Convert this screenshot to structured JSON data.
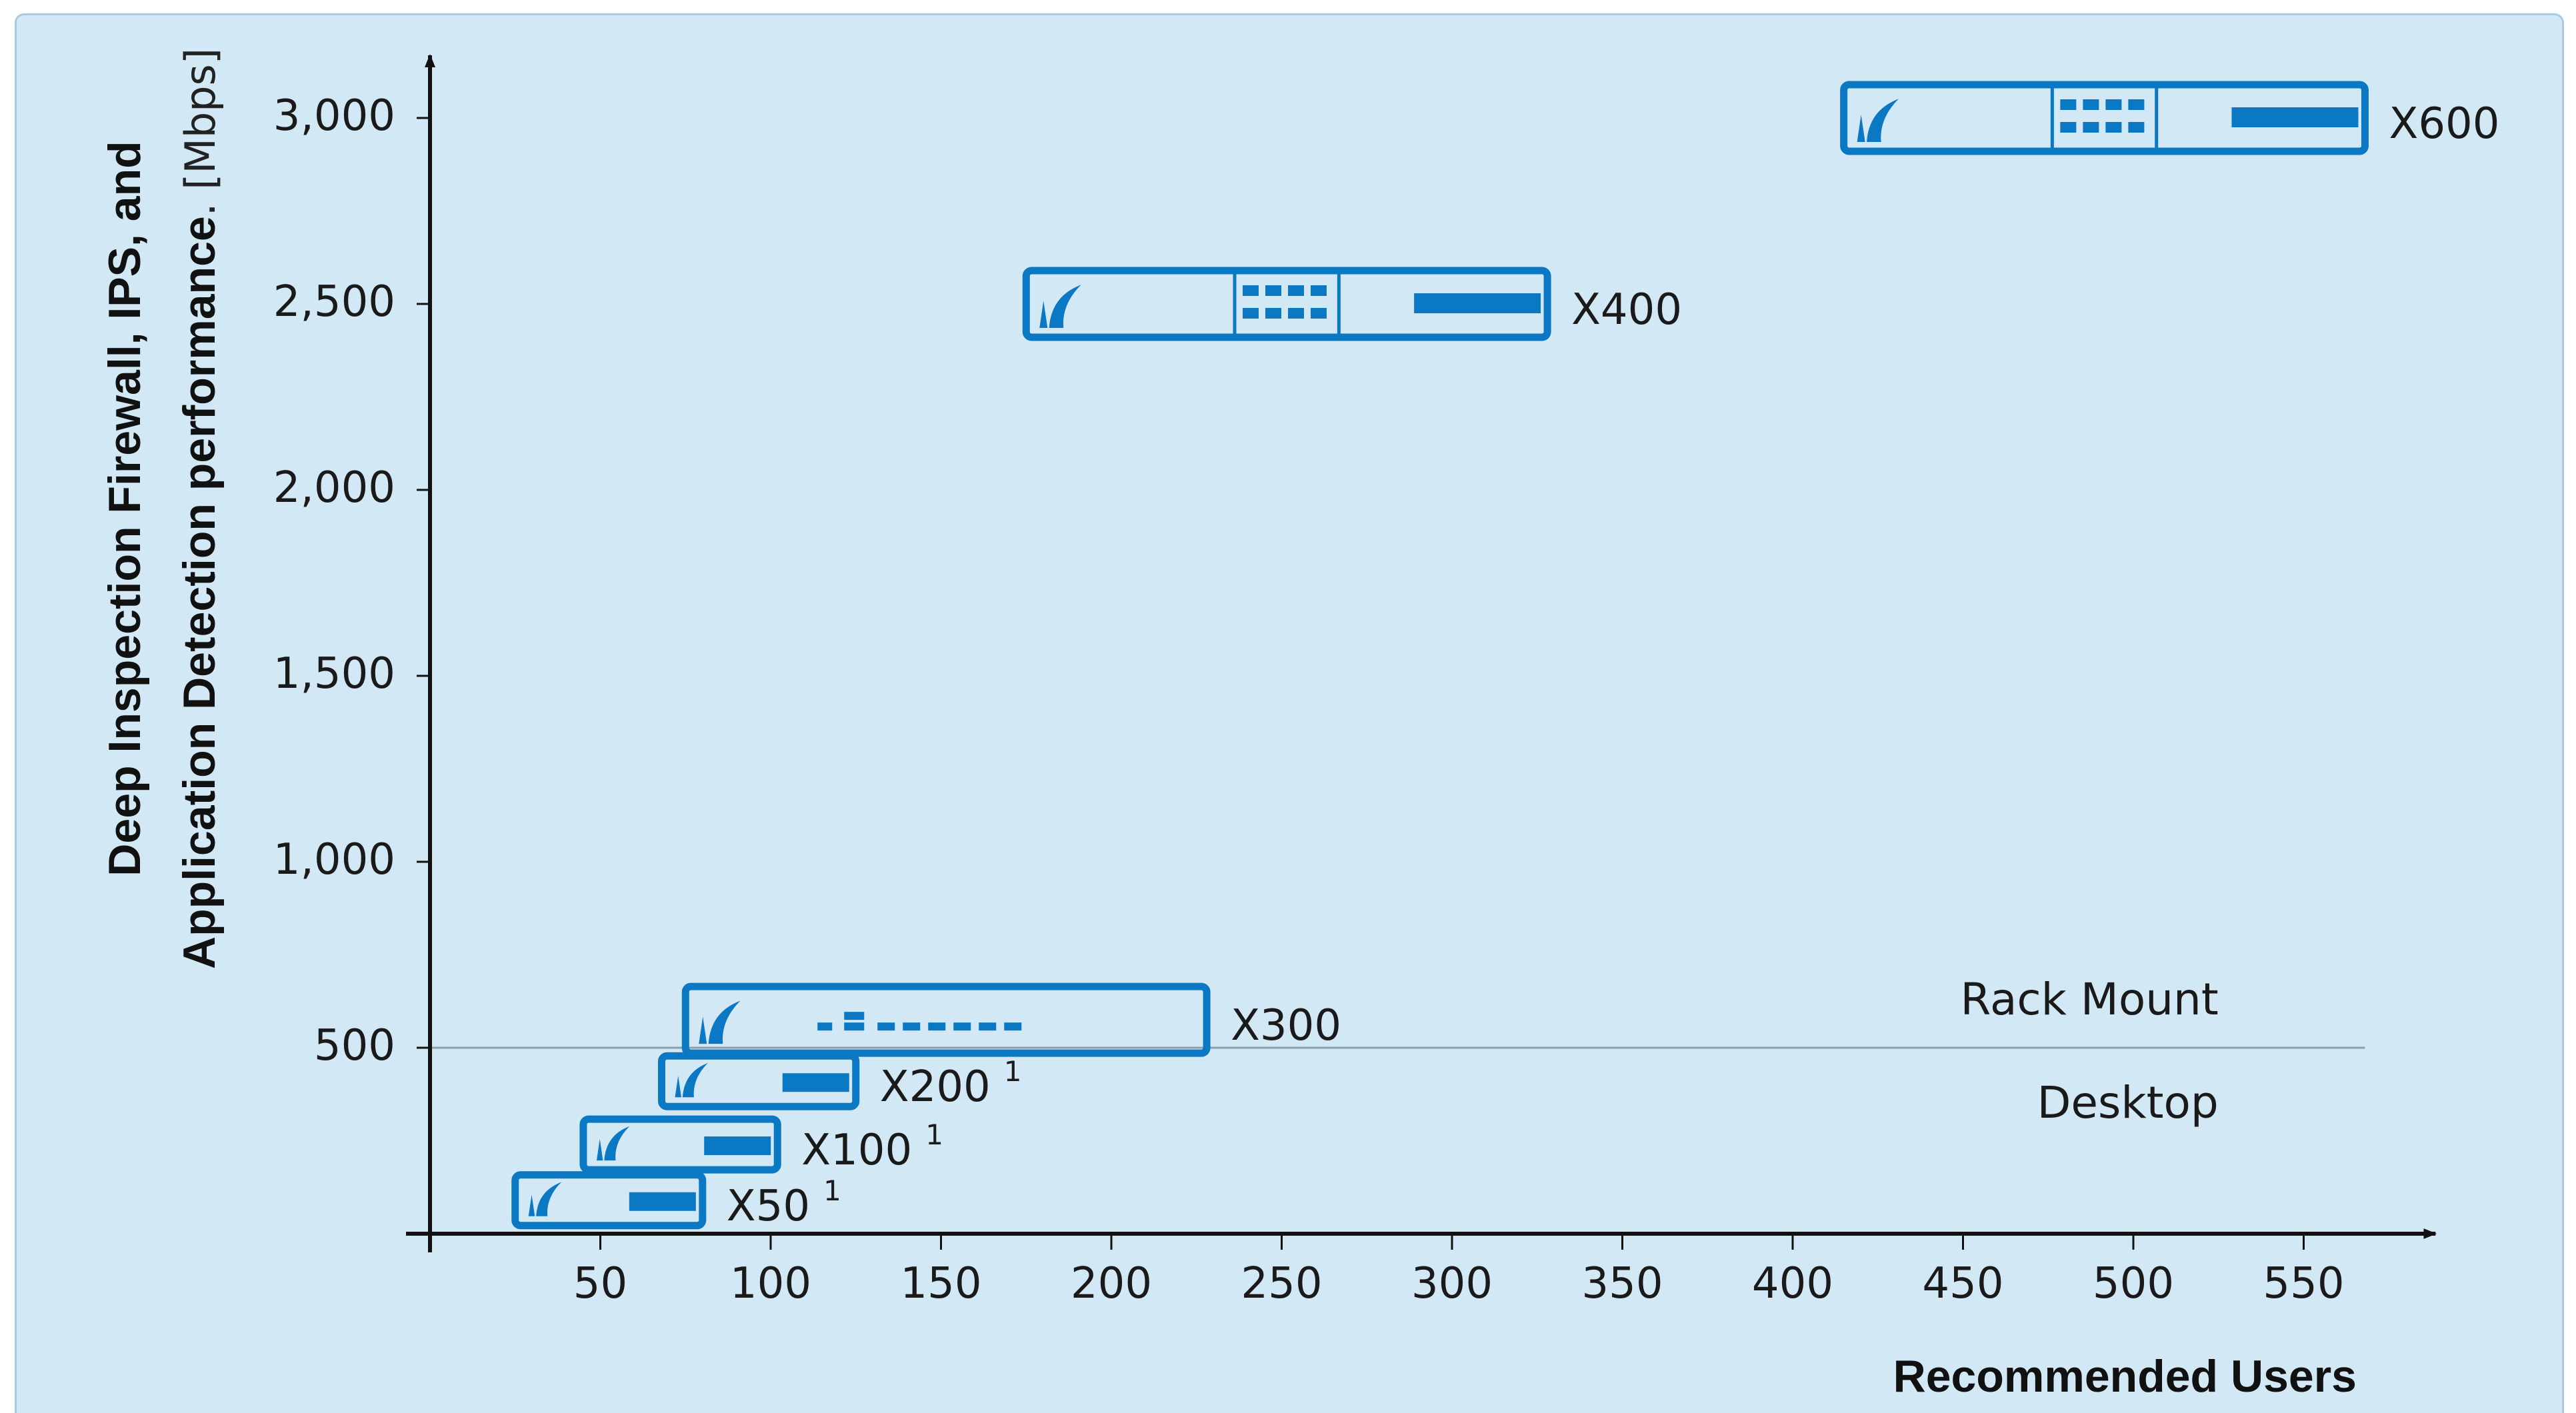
{
  "colors": {
    "background": "#d3e8f5",
    "device": "#0a78c2",
    "axis": "#111111",
    "divider": "#8aa0ad"
  },
  "chart_data": {
    "type": "scatter",
    "xlabel": "Recommended Users",
    "ylabel": "Deep Inspection Firewall, IPS, and Application Detection performance. [Mbps]",
    "ylabel_line1": "Deep Inspection Firewall, IPS, and",
    "ylabel_line2_bold": "Application Detection performance",
    "ylabel_line2_rest": ". [Mbps]",
    "xlim": [
      0,
      575
    ],
    "ylim": [
      0,
      3050
    ],
    "x_ticks": [
      50,
      100,
      150,
      200,
      250,
      300,
      350,
      400,
      450,
      500,
      550
    ],
    "x_tick_labels": [
      "50",
      "100",
      "150",
      "200",
      "250",
      "300",
      "350",
      "400",
      "450",
      "500",
      "550"
    ],
    "y_ticks": [
      500,
      1000,
      1500,
      2000,
      2500,
      3000
    ],
    "y_tick_labels": [
      "500",
      "1,000",
      "1,500",
      "2,000",
      "2,500",
      "3,000"
    ],
    "divider_y": 500,
    "zones": [
      {
        "label": "Rack Mount",
        "position": "above-divider-right"
      },
      {
        "label": "Desktop",
        "position": "below-divider-right"
      }
    ],
    "devices": [
      {
        "name": "X50",
        "footnote": "1",
        "users_from": 25,
        "users_to": 80,
        "throughput": 90,
        "kind": "desktop"
      },
      {
        "name": "X100",
        "footnote": "1",
        "users_from": 45,
        "users_to": 102,
        "throughput": 240,
        "kind": "desktop"
      },
      {
        "name": "X200",
        "footnote": "1",
        "users_from": 68,
        "users_to": 125,
        "throughput": 410,
        "kind": "desktop"
      },
      {
        "name": "X300",
        "footnote": "",
        "users_from": 75,
        "users_to": 228,
        "throughput": 575,
        "kind": "rack-small"
      },
      {
        "name": "X400",
        "footnote": "",
        "users_from": 175,
        "users_to": 328,
        "throughput": 2500,
        "kind": "rack-large"
      },
      {
        "name": "X600",
        "footnote": "",
        "users_from": 415,
        "users_to": 568,
        "throughput": 3000,
        "kind": "rack-large"
      }
    ]
  }
}
